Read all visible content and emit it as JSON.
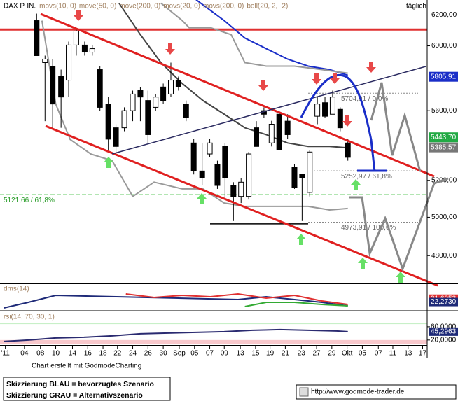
{
  "chart_data": [
    {
      "type": "candlestick",
      "title": "DAX P-IN.",
      "period": "täglich",
      "log_scale": true,
      "legend": [
        "movs(10, 0)",
        "move(50, 0)",
        "move(200, 0)",
        "movs(20, 0)",
        "movs(200, 0)",
        "boll(20, 2, -2)"
      ],
      "legend_color": "#a08060",
      "xlim": [
        -0.7,
        55.3
      ],
      "ylim": [
        4660,
        6300
      ],
      "yticks": [
        {
          "value": 6200,
          "label": "6200,00"
        },
        {
          "value": 6000,
          "label": "6000,00"
        },
        {
          "value": 5600,
          "label": "5600,00"
        },
        {
          "value": 5200,
          "label": "5200,00"
        },
        {
          "value": 5000,
          "label": "5000,00"
        },
        {
          "value": 4800,
          "label": "4800,00"
        }
      ],
      "x": [
        4.1,
        5.2,
        6.2,
        7.3,
        8.3,
        9.3,
        10.4,
        11.4,
        12.4,
        13.5,
        14.5,
        15.6,
        16.7,
        17.7,
        18.7,
        19.7,
        20.7,
        21.7,
        22.7,
        23.7,
        24.7,
        25.8,
        26.8,
        27.8,
        28.8,
        29.9,
        30.9,
        31.9,
        32.9,
        33.9,
        34.9,
        35.9,
        37.0,
        37.9,
        38.9,
        39.9,
        40.9,
        41.9,
        42.9,
        43.9,
        44.9
      ],
      "open": [
        6163,
        5894,
        5872,
        5807,
        5785,
        6005,
        6005,
        5960,
        5850,
        5640,
        5499,
        5499,
        5600,
        5721,
        5661,
        5620,
        5743,
        5700,
        5785,
        5640,
        5411,
        5252,
        5348,
        5290,
        5391,
        5172,
        5112,
        5112,
        5499,
        5600,
        5411,
        5579,
        5538,
        5272,
        5233,
        5134,
        5567,
        5648,
        5579,
        5608,
        5411
      ],
      "high": [
        6209,
        5938,
        5916,
        5850,
        6027,
        6117,
        6027,
        6005,
        5872,
        5682,
        5520,
        5620,
        5721,
        5743,
        5721,
        5700,
        5764,
        5894,
        5807,
        5661,
        5433,
        5411,
        5433,
        5310,
        5411,
        5190,
        5213,
        5359,
        5538,
        5620,
        5540,
        5600,
        5579,
        5290,
        5233,
        5371,
        5682,
        5682,
        5721,
        5620,
        5433
      ],
      "low": [
        5938,
        5538,
        5499,
        5499,
        5682,
        5938,
        5938,
        5938,
        5600,
        5371,
        5348,
        5479,
        5538,
        5538,
        5411,
        5600,
        5640,
        5682,
        5721,
        5538,
        5233,
        5172,
        5329,
        5153,
        5095,
        4980,
        5076,
        5095,
        5391,
        5558,
        5391,
        5371,
        5433,
        5153,
        4980,
        5112,
        5520,
        5558,
        5579,
        5479,
        5310
      ],
      "close": [
        5938,
        5916,
        5640,
        5682,
        6005,
        6095,
        5960,
        5982,
        5620,
        5433,
        5391,
        5600,
        5700,
        5682,
        5459,
        5682,
        5661,
        5785,
        5743,
        5558,
        5252,
        5213,
        5411,
        5172,
        5213,
        5112,
        5190,
        5348,
        5391,
        5579,
        5520,
        5371,
        5459,
        5160,
        5213,
        5359,
        5640,
        5567,
        5682,
        5499,
        5329
      ],
      "series": [
        {
          "color": "#444444",
          "x": [
            14.9,
            17.7,
            20.4,
            23.2,
            25.9,
            28.7,
            31.4,
            34.2,
            37.0,
            39.7,
            42.5,
            44.9
          ],
          "values": [
            6279,
            6072,
            5894,
            5764,
            5661,
            5579,
            5499,
            5459,
            5411,
            5391,
            5391,
            5383
          ]
        },
        {
          "color": "#1a2ec8",
          "x": [
            25.0,
            28.7,
            31.4,
            34.2,
            37.0,
            39.7,
            42.5,
            44.9
          ],
          "values": [
            6302,
            6163,
            6050,
            5982,
            5916,
            5872,
            5850,
            5815
          ]
        },
        {
          "color": "#999999",
          "x": [
            20.4,
            23.2,
            24.1,
            26.9,
            29.6,
            31.4,
            34.2,
            37.9,
            41.5,
            44.9
          ],
          "values": [
            6279,
            6163,
            6117,
            6117,
            6072,
            5894,
            5872,
            5872,
            5850,
            5828
          ]
        },
        {
          "color": "#999999",
          "x": [
            4.8,
            6.6,
            8.5,
            11.2,
            14.0,
            16.7,
            19.5,
            23.2,
            25.9,
            28.7,
            31.4,
            36.0,
            39.7,
            42.5,
            44.9
          ],
          "values": [
            6163,
            5640,
            5431,
            5348,
            5310,
            5112,
            5190,
            5153,
            5153,
            5076,
            5058,
            5058,
            5058,
            5039,
            5047
          ]
        }
      ],
      "levels": [
        {
          "value": 6105,
          "color": "#e03030"
        },
        {
          "value": 4965,
          "color": "#000000"
        },
        {
          "value": 5121.66,
          "label": "5121,66 / 61,8%",
          "color": "#33bb33"
        },
        {
          "value": 5704.91,
          "label": "5704,91 / 0,0%",
          "color": "#888888"
        },
        {
          "value": 5252.97,
          "label": "5252,97 / 61,8%",
          "color": "#888888"
        },
        {
          "value": 4973.91,
          "label": "4973,91 / 100,0%",
          "color": "#888888"
        }
      ],
      "price_tags": [
        {
          "value": 5805.91,
          "label": "5805,91",
          "color": "#1a2ec8"
        },
        {
          "value": 5443.7,
          "label": "5443,70",
          "color": "#22aa44"
        },
        {
          "value": 5385.57,
          "label": "5385,57",
          "color": "#777777"
        }
      ]
    },
    {
      "type": "line",
      "title": "dms(14)",
      "xlim": [
        -0.7,
        55.3
      ],
      "ylim": [
        0,
        70
      ],
      "yticks": [
        {
          "value": 31.6053,
          "label": "31,6053"
        },
        {
          "value": 22.273,
          "label": "22,2730"
        }
      ],
      "series": [
        {
          "color": "#1e2a78",
          "x": [
            -0.2,
            3.0,
            6.6,
            30.5,
            34.2,
            37.9,
            41.5,
            44.9
          ],
          "values": [
            5.8,
            21.4,
            40.8,
            29.2,
            36.9,
            29.2,
            21.4,
            11.7
          ]
        },
        {
          "color": "#e03030",
          "x": [
            15.8,
            19.5,
            23.2,
            26.9,
            30.5,
            34.2,
            37.9,
            41.5,
            44.9
          ],
          "values": [
            44.7,
            35,
            40.8,
            36.9,
            44.7,
            33.1,
            40.8,
            25.3,
            15.6
          ]
        },
        {
          "color": "#33aa33",
          "x": [
            31.4,
            34.2,
            37.9,
            41.5,
            44.9
          ],
          "values": [
            9.7,
            21.4,
            21.4,
            15.6,
            11.7
          ]
        }
      ]
    },
    {
      "type": "line",
      "title": "rsi(14, 70, 30, 1)",
      "xlim": [
        -0.7,
        55.3
      ],
      "ylim": [
        7,
        102
      ],
      "yticks": [
        {
          "value": 60,
          "label": "60,0000"
        },
        {
          "value": 45.2963,
          "label": "45,2963"
        },
        {
          "value": 20,
          "label": "20,0000"
        }
      ],
      "zones": [
        {
          "from": 68,
          "to": 72,
          "color": "#c8f0c8"
        },
        {
          "from": 7,
          "to": 20,
          "color": "#f8c8cc"
        }
      ],
      "xticks": [
        {
          "value": 0,
          "label": "'11"
        },
        {
          "value": 2.5,
          "label": "04"
        },
        {
          "value": 4.6,
          "label": "08"
        },
        {
          "value": 6.6,
          "label": "10"
        },
        {
          "value": 8.8,
          "label": "14"
        },
        {
          "value": 10.8,
          "label": "16"
        },
        {
          "value": 12.8,
          "label": "18"
        },
        {
          "value": 14.7,
          "label": "22"
        },
        {
          "value": 16.7,
          "label": "24"
        },
        {
          "value": 18.7,
          "label": "26"
        },
        {
          "value": 20.7,
          "label": "30"
        },
        {
          "value": 22.8,
          "label": "Sep"
        },
        {
          "value": 24.8,
          "label": "05"
        },
        {
          "value": 26.8,
          "label": "07"
        },
        {
          "value": 28.7,
          "label": "09"
        },
        {
          "value": 30.8,
          "label": "13"
        },
        {
          "value": 32.8,
          "label": "15"
        },
        {
          "value": 34.7,
          "label": "19"
        },
        {
          "value": 36.7,
          "label": "21"
        },
        {
          "value": 38.8,
          "label": "23"
        },
        {
          "value": 40.8,
          "label": "27"
        },
        {
          "value": 42.8,
          "label": "29"
        },
        {
          "value": 44.8,
          "label": "Okt"
        },
        {
          "value": 46.8,
          "label": "05"
        },
        {
          "value": 48.9,
          "label": "07"
        },
        {
          "value": 50.8,
          "label": "11"
        },
        {
          "value": 52.8,
          "label": "13"
        },
        {
          "value": 54.7,
          "label": "17"
        }
      ],
      "series": [
        {
          "color": "#2a2a70",
          "x": [
            -0.2,
            3.0,
            6.6,
            10.3,
            14.0,
            17.7,
            21.3,
            25.0,
            28.7,
            32.4,
            36.0,
            39.7,
            43.4,
            44.9
          ],
          "values": [
            15.8,
            20,
            26.3,
            28.4,
            32.6,
            38.9,
            41.1,
            43.2,
            45.3,
            49.5,
            51.6,
            49.5,
            47.4,
            45.3
          ]
        }
      ]
    }
  ],
  "footer": {
    "credit": "Chart erstellt mit GodmodeCharting",
    "notes": [
      "Skizzierung BLAU = bevorzugtes Szenario",
      "Skizzierung GRAU = Alternativszenario"
    ],
    "url": "http://www.godmode-trader.de"
  }
}
